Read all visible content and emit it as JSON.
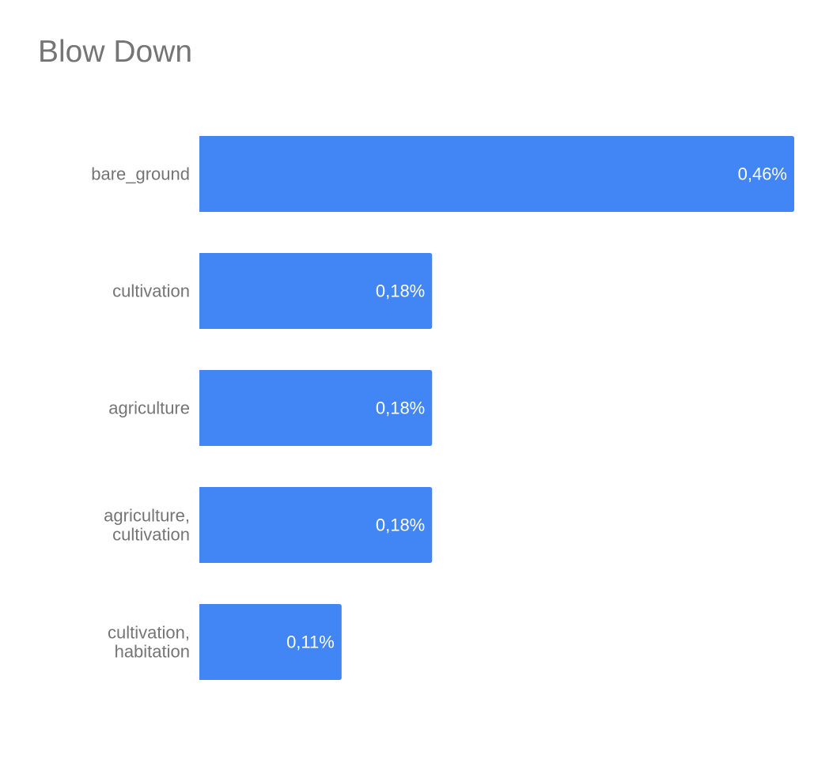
{
  "chart_data": {
    "type": "bar",
    "orientation": "horizontal",
    "title": "Blow Down",
    "categories": [
      [
        "bare_ground"
      ],
      [
        "cultivation"
      ],
      [
        "agriculture"
      ],
      [
        "agriculture,",
        "cultivation"
      ],
      [
        "cultivation,",
        "habitation"
      ]
    ],
    "values": [
      0.46,
      0.18,
      0.18,
      0.18,
      0.11
    ],
    "value_labels": [
      "0,46%",
      "0,18%",
      "0,18%",
      "0,18%",
      "0,11%"
    ],
    "unit": "%",
    "xlim": [
      0,
      0.46
    ],
    "grid": false,
    "legend": "none",
    "bar_color": "#4285f4",
    "label_color": "#757575",
    "value_label_color": "#ffffff"
  }
}
